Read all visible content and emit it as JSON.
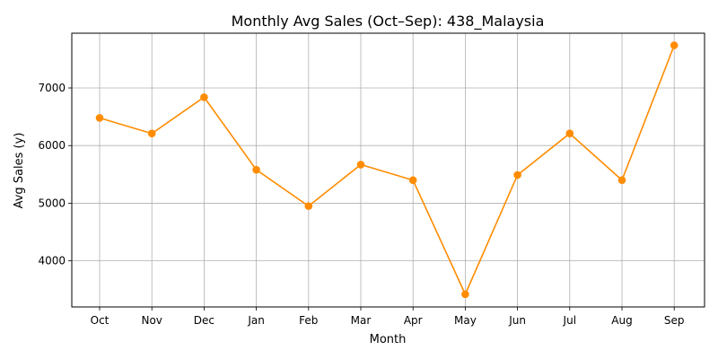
{
  "chart_data": {
    "type": "line",
    "title": "Monthly Avg Sales (Oct–Sep): 438_Malaysia",
    "xlabel": "Month",
    "ylabel": "Avg Sales (y)",
    "categories": [
      "Oct",
      "Nov",
      "Dec",
      "Jan",
      "Feb",
      "Mar",
      "Apr",
      "May",
      "Jun",
      "Jul",
      "Aug",
      "Sep"
    ],
    "series": [
      {
        "values": [
          6480,
          6210,
          6840,
          5580,
          4950,
          5670,
          5400,
          3420,
          5490,
          6210,
          5400,
          7740
        ]
      }
    ],
    "yticks": [
      4000,
      5000,
      6000,
      7000
    ],
    "ylim": [
      3200,
      7950
    ],
    "grid": true,
    "line_color": "#ff8c00",
    "marker": "circle"
  }
}
